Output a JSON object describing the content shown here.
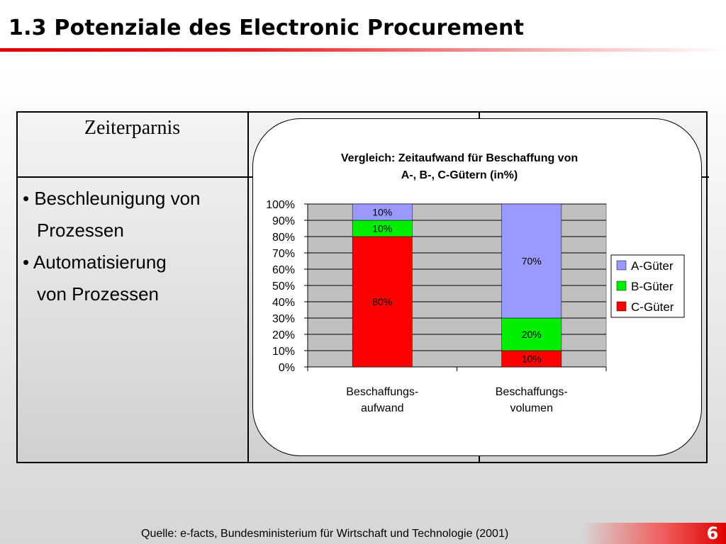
{
  "slide": {
    "title": "1.3 Potenziale des Electronic Procurement",
    "page_number": "6",
    "source": "Quelle: e-facts, Bundesministerium für Wirtschaft und Technologie (2001)",
    "accent_color": "#e00000"
  },
  "table": {
    "header": "Zeiterparnis",
    "bullets": [
      {
        "line1": "• Beschleunigung von",
        "line2": "Prozessen"
      },
      {
        "line1": "• Automatisierung",
        "line2": "von Prozessen"
      }
    ]
  },
  "chart_data": {
    "type": "bar",
    "stacked": true,
    "title": "Vergleich: Zeitaufwand für Beschaffung von A-, B-, C-Gütern (in%)",
    "title_lines": [
      "Vergleich: Zeitaufwand für Beschaffung von",
      "A-, B-, C-Gütern (in%)"
    ],
    "categories": [
      "Beschaffungs-aufwand",
      "Beschaffungs-volumen"
    ],
    "category_lines": [
      [
        "Beschaffungs-",
        "aufwand"
      ],
      [
        "Beschaffungs-",
        "volumen"
      ]
    ],
    "series": [
      {
        "name": "C-Güter",
        "values": [
          80,
          10
        ],
        "labels": [
          "80%",
          "10%"
        ],
        "color": "#ff0000"
      },
      {
        "name": "B-Güter",
        "values": [
          10,
          20
        ],
        "labels": [
          "10%",
          "20%"
        ],
        "color": "#00ee00"
      },
      {
        "name": "A-Güter",
        "values": [
          10,
          70
        ],
        "labels": [
          "10%",
          "70%"
        ],
        "color": "#9999ff"
      }
    ],
    "legend_order": [
      "A-Güter",
      "B-Güter",
      "C-Güter"
    ],
    "ylim": [
      0,
      100
    ],
    "yticks": [
      "0%",
      "10%",
      "20%",
      "30%",
      "40%",
      "50%",
      "60%",
      "70%",
      "80%",
      "90%",
      "100%"
    ],
    "grid": true,
    "plot_background": "#c0c0c0",
    "legend_position": "right",
    "xlabel": "",
    "ylabel": ""
  }
}
